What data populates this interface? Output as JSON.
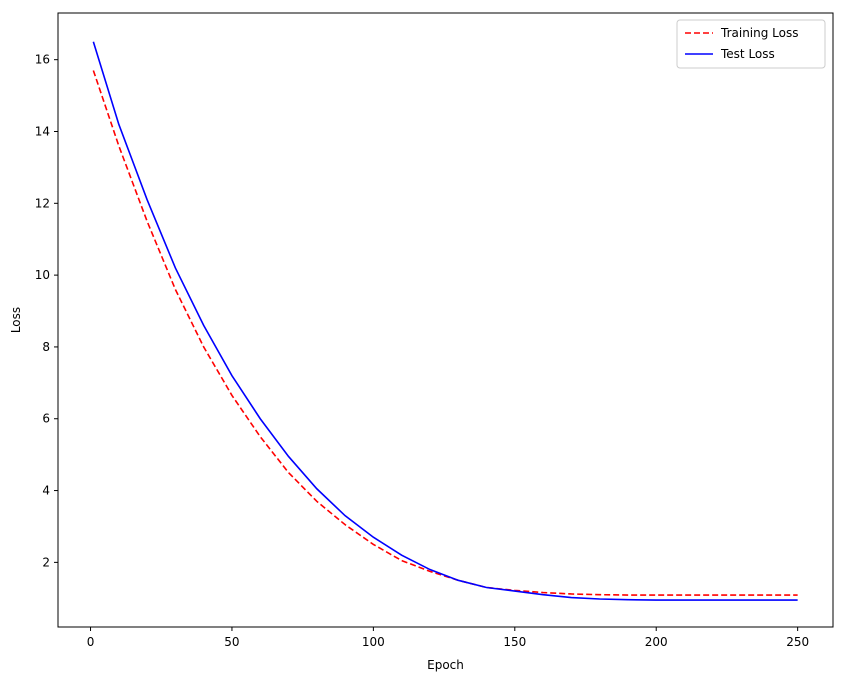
{
  "chart_data": {
    "type": "line",
    "title": "",
    "xlabel": "Epoch",
    "ylabel": "Loss",
    "xlim": [
      -11.5,
      262.5
    ],
    "ylim": [
      0.2,
      17.3
    ],
    "xticks": [
      0,
      50,
      100,
      150,
      200,
      250
    ],
    "yticks": [
      2,
      4,
      6,
      8,
      10,
      12,
      14,
      16
    ],
    "grid": false,
    "legend_position": "top-right",
    "series": [
      {
        "name": "Training Loss",
        "color": "#ff0000",
        "style": "dashed",
        "x": [
          1,
          10,
          20,
          30,
          40,
          50,
          60,
          70,
          80,
          90,
          100,
          110,
          120,
          130,
          140,
          150,
          160,
          170,
          180,
          190,
          200,
          210,
          220,
          230,
          240,
          250
        ],
        "y": [
          15.7,
          13.6,
          11.5,
          9.6,
          8.0,
          6.65,
          5.5,
          4.5,
          3.7,
          3.05,
          2.5,
          2.05,
          1.75,
          1.5,
          1.3,
          1.22,
          1.16,
          1.12,
          1.1,
          1.09,
          1.09,
          1.09,
          1.09,
          1.09,
          1.09,
          1.09
        ]
      },
      {
        "name": "Test Loss",
        "color": "#0000ff",
        "style": "solid",
        "x": [
          1,
          10,
          20,
          30,
          40,
          50,
          60,
          70,
          80,
          90,
          100,
          110,
          120,
          130,
          140,
          150,
          160,
          170,
          180,
          190,
          200,
          210,
          220,
          230,
          240,
          250
        ],
        "y": [
          16.5,
          14.2,
          12.1,
          10.2,
          8.6,
          7.2,
          6.0,
          4.95,
          4.05,
          3.3,
          2.7,
          2.2,
          1.8,
          1.5,
          1.3,
          1.2,
          1.1,
          1.02,
          0.98,
          0.96,
          0.95,
          0.95,
          0.95,
          0.95,
          0.95,
          0.95
        ]
      }
    ]
  }
}
